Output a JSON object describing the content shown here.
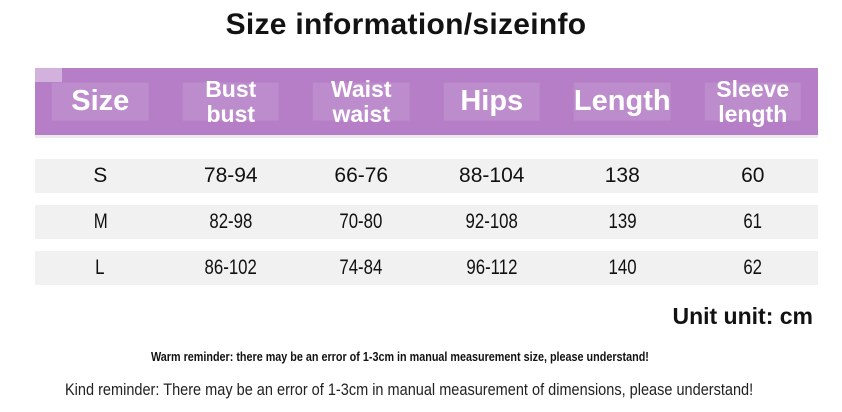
{
  "title": "Size information/sizeinfo",
  "table": {
    "columns": [
      {
        "line1": "Size"
      },
      {
        "line1": "Bust",
        "line2": "bust"
      },
      {
        "line1": "Waist",
        "line2": "waist"
      },
      {
        "line1": "Hips"
      },
      {
        "line1": "Length"
      },
      {
        "line1": "Sleeve",
        "line2": "length"
      }
    ],
    "rows": [
      {
        "size": "S",
        "bust": "78-94",
        "waist": "66-76",
        "hips": "88-104",
        "length": "138",
        "sleeve": "60"
      },
      {
        "size": "M",
        "bust": "82-98",
        "waist": "70-80",
        "hips": "92-108",
        "length": "139",
        "sleeve": "61"
      },
      {
        "size": "L",
        "bust": "86-102",
        "waist": "74-84",
        "hips": "96-112",
        "length": "140",
        "sleeve": "62"
      }
    ]
  },
  "unit_text": "Unit unit: cm",
  "warm_reminder": "Warm reminder: there may be an error of 1-3cm in manual measurement size, please understand!",
  "kind_reminder": "Kind reminder: There may be an error of 1-3cm in manual measurement of dimensions, please understand!",
  "colors": {
    "header_bg": "#b57ec6",
    "row_bg": "#f1f1f2",
    "title_text": "#121212",
    "header_text": "#ffffff"
  }
}
